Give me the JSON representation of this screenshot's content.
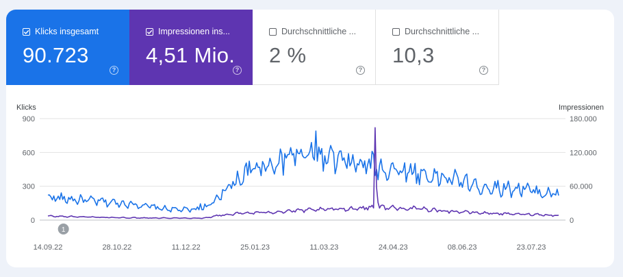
{
  "metrics": [
    {
      "label": "Klicks insgesamt",
      "value": "90.723",
      "checked": true,
      "color": "#1a73e8"
    },
    {
      "label": "Impressionen ins...",
      "value": "4,51 Mio.",
      "checked": true,
      "color": "#5e35b1"
    },
    {
      "label": "Durchschnittliche ...",
      "value": "2 %",
      "checked": false,
      "color": "#ffffff"
    },
    {
      "label": "Durchschnittliche ...",
      "value": "10,3",
      "checked": false,
      "color": "#ffffff"
    }
  ],
  "help_glyph": "?",
  "chart_data": {
    "type": "line",
    "ylabel_left": "Klicks",
    "ylabel_right": "Impressionen",
    "left_ticks": [
      "900",
      "600",
      "300",
      "0"
    ],
    "right_ticks": [
      "180.000",
      "120.000",
      "60.000",
      "0"
    ],
    "ylim_left": [
      0,
      900
    ],
    "ylim_right": [
      0,
      180000
    ],
    "x_tick_labels": [
      "14.09.22",
      "28.10.22",
      "11.12.22",
      "25.01.23",
      "11.03.23",
      "24.04.23",
      "08.06.23",
      "23.07.23"
    ],
    "x_range_days": [
      0,
      345
    ],
    "grid": true,
    "annotation": {
      "label": "1",
      "x_day": 4
    },
    "series": [
      {
        "name": "Klicks",
        "color": "#1a73e8",
        "axis": "left",
        "anchors": [
          [
            0,
            205
          ],
          [
            10,
            190
          ],
          [
            20,
            180
          ],
          [
            35,
            165
          ],
          [
            50,
            150
          ],
          [
            60,
            140
          ],
          [
            75,
            105
          ],
          [
            85,
            95
          ],
          [
            95,
            90
          ],
          [
            103,
            100
          ],
          [
            112,
            150
          ],
          [
            116,
            200
          ],
          [
            120,
            280
          ],
          [
            125,
            320
          ],
          [
            130,
            380
          ],
          [
            135,
            420
          ],
          [
            140,
            460
          ],
          [
            150,
            500
          ],
          [
            160,
            530
          ],
          [
            170,
            570
          ],
          [
            180,
            560
          ],
          [
            190,
            550
          ],
          [
            200,
            510
          ],
          [
            210,
            490
          ],
          [
            220,
            475
          ],
          [
            230,
            450
          ],
          [
            238,
            440
          ],
          [
            245,
            430
          ],
          [
            255,
            400
          ],
          [
            265,
            380
          ],
          [
            280,
            345
          ],
          [
            290,
            310
          ],
          [
            300,
            290
          ],
          [
            310,
            285
          ],
          [
            320,
            275
          ],
          [
            330,
            250
          ],
          [
            340,
            230
          ],
          [
            345,
            220
          ]
        ],
        "spikes": [
          [
            103,
            145
          ],
          [
            118,
            270
          ],
          [
            133,
            470
          ],
          [
            145,
            520
          ],
          [
            160,
            590
          ],
          [
            166,
            590
          ],
          [
            181,
            790
          ],
          [
            190,
            600
          ],
          [
            206,
            580
          ],
          [
            219,
            610
          ],
          [
            232,
            500
          ],
          [
            245,
            500
          ],
          [
            260,
            360
          ],
          [
            290,
            290
          ],
          [
            305,
            260
          ],
          [
            321,
            300
          ],
          [
            338,
            290
          ]
        ]
      },
      {
        "name": "Impressionen",
        "color": "#5e35b1",
        "axis": "right",
        "anchors": [
          [
            0,
            7000
          ],
          [
            50,
            4200
          ],
          [
            85,
            3600
          ],
          [
            105,
            3400
          ],
          [
            115,
            8000
          ],
          [
            130,
            12000
          ],
          [
            150,
            14000
          ],
          [
            170,
            17000
          ],
          [
            190,
            19000
          ],
          [
            210,
            21000
          ],
          [
            220,
            23000
          ],
          [
            230,
            22000
          ],
          [
            250,
            20000
          ],
          [
            270,
            16000
          ],
          [
            290,
            13000
          ],
          [
            310,
            11000
          ],
          [
            330,
            10000
          ],
          [
            345,
            8000
          ]
        ],
        "spikes": [
          [
            221,
            164000
          ],
          [
            222,
            58000
          ],
          [
            223,
            31000
          ]
        ]
      }
    ]
  }
}
